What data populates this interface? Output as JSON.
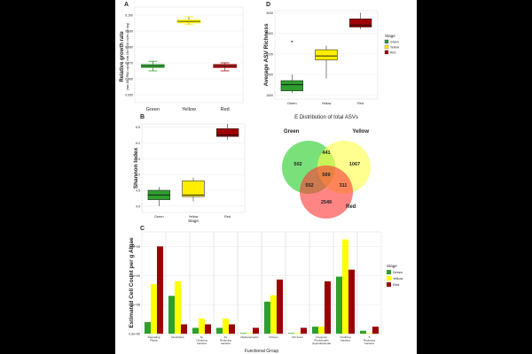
{
  "chart_data": [
    {
      "panel": "A",
      "type": "box",
      "ylabel": "Relative growth rate",
      "ylabel_sub": "(max 16s rRNA copies/ total 16s rRNA copies per day)",
      "categories": [
        "Green",
        "Yellow",
        "Red"
      ],
      "colors": [
        "#2e9e2e",
        "#ffee00",
        "#a00000"
      ],
      "ylim": [
        0.045,
        0.105
      ],
      "yticks": [
        "0.100",
        "0.090",
        "0.080",
        "0.070",
        "0.060",
        "0.050"
      ],
      "ytick_values": [
        0.1,
        0.09,
        0.08,
        0.07,
        0.06,
        0.05
      ],
      "boxes": [
        {
          "min": 0.065,
          "q1": 0.067,
          "median": 0.068,
          "q3": 0.069,
          "max": 0.071
        },
        {
          "min": 0.094,
          "q1": 0.095,
          "median": 0.096,
          "q3": 0.097,
          "max": 0.099
        },
        {
          "min": 0.065,
          "q1": 0.067,
          "median": 0.068,
          "q3": 0.069,
          "max": 0.07
        }
      ]
    },
    {
      "panel": "D",
      "type": "box",
      "ylabel": "Average ASV Richness",
      "categories": [
        "Green",
        "Yellow",
        "Red"
      ],
      "colors": [
        "#2e9e2e",
        "#ffee00",
        "#a00000"
      ],
      "ylim": [
        900,
        3050
      ],
      "yticks": [
        "3000",
        "2500",
        "2000",
        "1500",
        "1000"
      ],
      "ytick_values": [
        3000,
        2500,
        2000,
        1500,
        1000
      ],
      "boxes": [
        {
          "min": 1050,
          "q1": 1100,
          "median": 1250,
          "q3": 1350,
          "max": 1500,
          "outliers": [
            2300
          ]
        },
        {
          "min": 1400,
          "q1": 1850,
          "median": 1950,
          "q3": 2100,
          "max": 2200
        },
        {
          "min": 2600,
          "q1": 2650,
          "median": 2700,
          "q3": 2850,
          "max": 3000
        }
      ],
      "legend_title": "Stage",
      "legend": [
        "Green",
        "Yellow",
        "Red"
      ]
    },
    {
      "panel": "B",
      "type": "box",
      "ylabel": "Shannon Index",
      "xlabel": "Stage",
      "categories": [
        "Green",
        "Yellow",
        "Red"
      ],
      "colors": [
        "#2e9e2e",
        "#ffee00",
        "#a00000"
      ],
      "ylim": [
        3.8,
        6.6
      ],
      "yticks": [
        "6.5",
        "6.0",
        "5.5",
        "5.0",
        "4.5",
        "4.0"
      ],
      "ytick_values": [
        6.5,
        6.0,
        5.5,
        5.0,
        4.5,
        4.0
      ],
      "boxes": [
        {
          "min": 4.0,
          "q1": 4.2,
          "median": 4.35,
          "q3": 4.5,
          "max": 4.6
        },
        {
          "min": 4.15,
          "q1": 4.3,
          "median": 4.35,
          "q3": 4.8,
          "max": 4.9
        },
        {
          "min": 6.1,
          "q1": 6.2,
          "median": 6.25,
          "q3": 6.45,
          "max": 6.6
        }
      ]
    },
    {
      "panel": "E",
      "type": "venn",
      "title": "Distribution of total ASVs",
      "sets": [
        "Green",
        "Yellow",
        "Red"
      ],
      "colors": [
        "#22cc22",
        "#ffff44",
        "#ff3333"
      ],
      "regions": {
        "green_only": 502,
        "yellow_only": 1067,
        "red_only": 2549,
        "green_yellow": 441,
        "green_red": 552,
        "yellow_red": 311,
        "all": 569
      }
    },
    {
      "panel": "C",
      "type": "bar",
      "ylabel": "Estimated Cell Count per g Algae",
      "xlabel": "Functional Group",
      "categories": [
        "Degrading\nPlastic",
        "Denitrifiers",
        "Fe\nOxidizing\nbacteria",
        "Fe\nReducing\nbacteria",
        "Methanotrophs",
        "N fixers",
        "NO fixers",
        "Oxygenic\nPhototrophs\n(Cyanobacteria)",
        "Oxidizing\nbacteria",
        "S\nReducing\nbacteria"
      ],
      "ylim": [
        0,
        1.75
      ],
      "yticks": [
        "1.5e+09",
        "1.0e+09",
        "5.0e+08",
        "0.0e+00"
      ],
      "ytick_values": [
        1.5,
        1.0,
        0.5,
        0.0
      ],
      "series": [
        {
          "name": "Green",
          "color": "#2e9e2e",
          "values": [
            0.2,
            0.65,
            0.1,
            0.1,
            0.01,
            0.55,
            0.01,
            0.12,
            0.98,
            0.05
          ]
        },
        {
          "name": "Yellow",
          "color": "#ffff00",
          "values": [
            0.85,
            0.9,
            0.26,
            0.26,
            0.01,
            0.66,
            0.01,
            0.12,
            1.62,
            0.01
          ]
        },
        {
          "name": "Red",
          "color": "#990000",
          "values": [
            1.5,
            0.16,
            0.16,
            0.16,
            0.1,
            0.93,
            0.1,
            0.9,
            1.1,
            0.12
          ]
        }
      ],
      "legend_title": "Stage",
      "legend": [
        "Green",
        "Yellow",
        "Red"
      ]
    }
  ]
}
